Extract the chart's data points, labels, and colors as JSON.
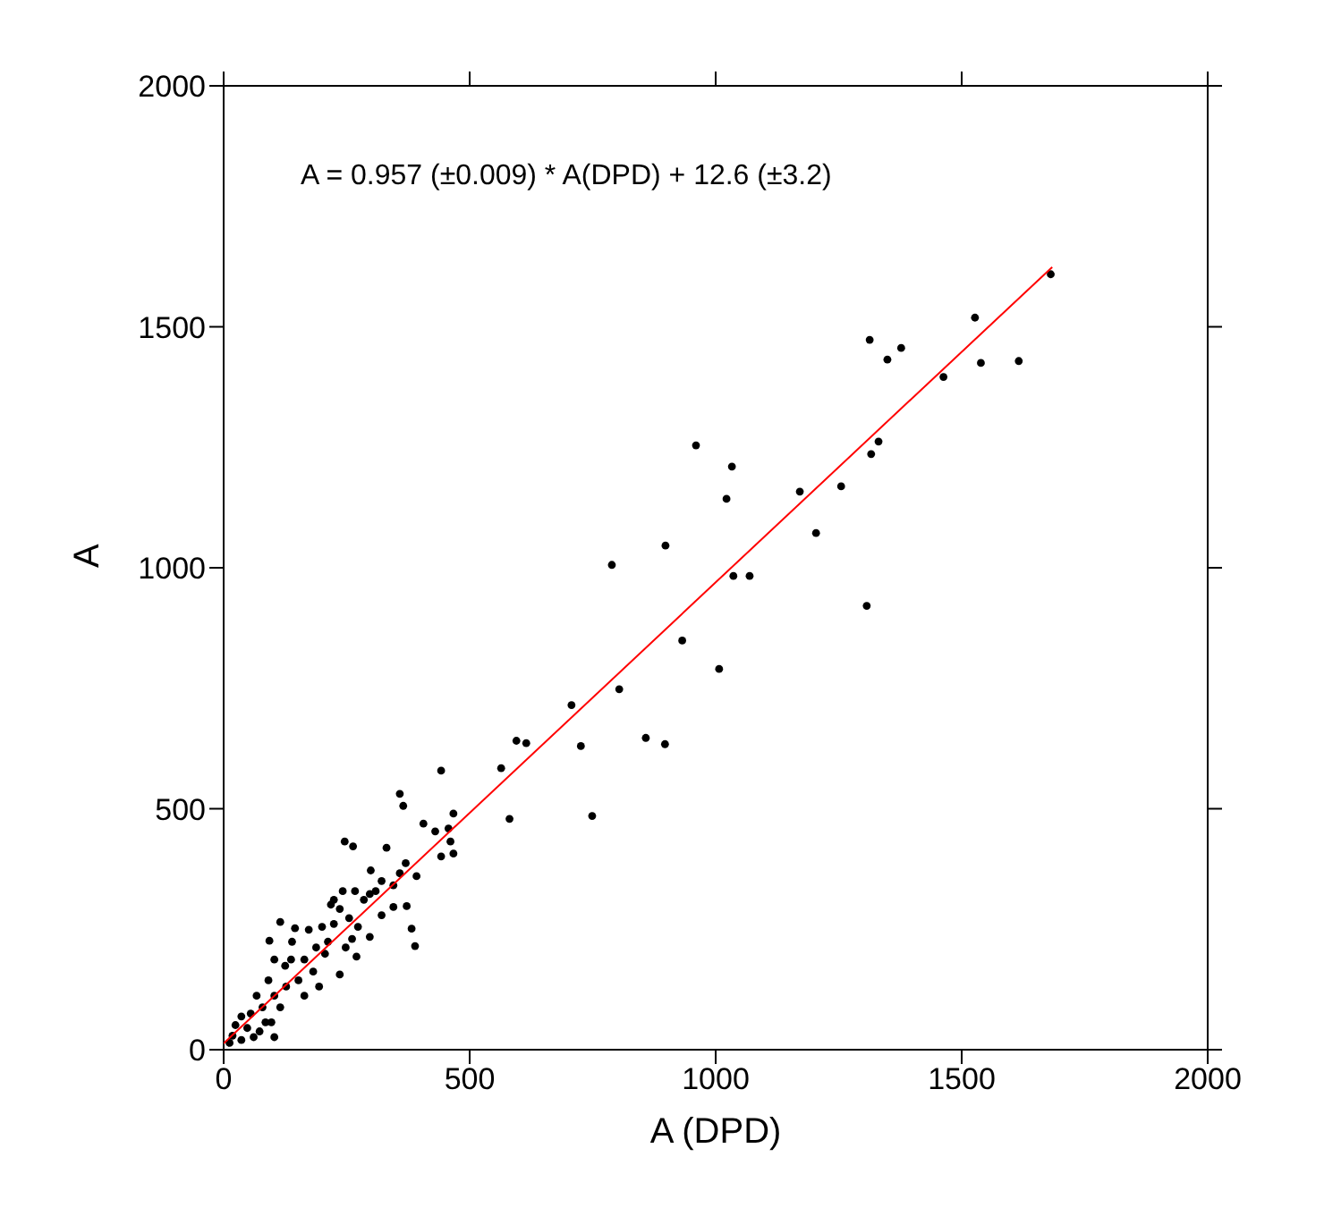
{
  "chart_data": {
    "type": "scatter",
    "xlabel": "A (DPD)",
    "ylabel": "A",
    "annotations": [
      "A = 0.957 (±0.009) * A(DPD) + 12.6 (±3.2)"
    ],
    "xlim": [
      0,
      2000
    ],
    "ylim": [
      0,
      2000
    ],
    "xticks": [
      0,
      500,
      1000,
      1500,
      2000
    ],
    "yticks": [
      0,
      500,
      1000,
      1500,
      2000
    ],
    "grid": false,
    "legend": false,
    "marker": "circle",
    "series": [
      {
        "color": "#000000",
        "x": [
          1681,
          1527,
          1539,
          1616,
          1463,
          1377,
          1313,
          1349,
          1331,
          1316,
          1255,
          1204,
          1171,
          1307,
          1033,
          1022,
          960,
          898,
          1036,
          1069,
          932,
          1007,
          789,
          804,
          707,
          595,
          615,
          564,
          726,
          858,
          897,
          581,
          749,
          442,
          358,
          365,
          467,
          406,
          430,
          457,
          461,
          442,
          467,
          246,
          263,
          331,
          299,
          370,
          358,
          392,
          321,
          345,
          309,
          297,
          242,
          267,
          372,
          345,
          321,
          236,
          218,
          255,
          224,
          273,
          200,
          173,
          145,
          115,
          93,
          382,
          389,
          297,
          261,
          270,
          236,
          206,
          188,
          164,
          137,
          103,
          125,
          182,
          152,
          91,
          127,
          67,
          103,
          194,
          164,
          79,
          115,
          55,
          97,
          36,
          24,
          48,
          73,
          18,
          61,
          36,
          12,
          103,
          85,
          224,
          285,
          212,
          248,
          139
        ],
        "values": [
          1609,
          1519,
          1425,
          1429,
          1396,
          1456,
          1473,
          1432,
          1262,
          1236,
          1169,
          1072,
          1158,
          921,
          1210,
          1143,
          1254,
          1046,
          983,
          983,
          849,
          790,
          1006,
          748,
          715,
          641,
          636,
          584,
          630,
          647,
          634,
          479,
          485,
          579,
          531,
          506,
          490,
          469,
          453,
          459,
          432,
          401,
          407,
          432,
          422,
          419,
          372,
          387,
          366,
          360,
          350,
          341,
          329,
          323,
          329,
          329,
          298,
          296,
          279,
          292,
          301,
          273,
          261,
          255,
          255,
          249,
          252,
          265,
          226,
          251,
          215,
          234,
          230,
          193,
          156,
          199,
          212,
          187,
          187,
          187,
          174,
          162,
          144,
          144,
          131,
          112,
          112,
          131,
          112,
          88,
          88,
          75,
          57,
          69,
          51,
          45,
          38,
          29,
          26,
          20,
          14,
          26,
          57,
          311,
          311,
          224,
          212,
          224
        ]
      },
      {
        "type": "line",
        "color": "#ff0000",
        "marker": "none",
        "x": [
          0,
          1684
        ],
        "values": [
          13,
          1624
        ]
      }
    ]
  }
}
